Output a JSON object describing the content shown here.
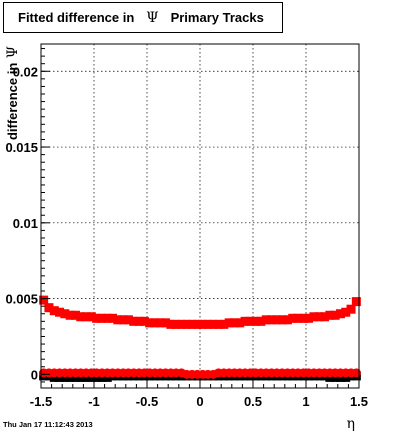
{
  "title": {
    "text": "Fitted difference in",
    "symbol": "Ψ",
    "suffix": "Primary Tracks"
  },
  "footer": "Thu Jan 17 11:12:43 2013",
  "chart_data": {
    "type": "scatter",
    "xlabel": "η",
    "ylabel_text": "difference in",
    "ylabel_symbol": "Ψ",
    "xlim": [
      -1.5,
      1.5
    ],
    "ylim": [
      -0.0009,
      0.0218
    ],
    "xticks": [
      -1.5,
      -1,
      -0.5,
      0,
      0.5,
      1,
      1.5
    ],
    "xtick_labels": [
      "-1.5",
      "-1",
      "-0.5",
      "0",
      "0.5",
      "1",
      "1.5"
    ],
    "yticks": [
      0,
      0.005,
      0.01,
      0.015,
      0.02
    ],
    "ytick_labels": [
      "0",
      "0.005",
      "0.01",
      "0.015",
      "0.02"
    ],
    "grid": true,
    "colors": {
      "red": "#ff0000",
      "black": "#000000"
    },
    "series": [
      {
        "color": "#ff0000",
        "marker": "square",
        "x": [
          -1.475,
          -1.425,
          -1.375,
          -1.325,
          -1.275,
          -1.225,
          -1.175,
          -1.125,
          -1.075,
          -1.025,
          -0.975,
          -0.925,
          -0.875,
          -0.825,
          -0.775,
          -0.725,
          -0.675,
          -0.625,
          -0.575,
          -0.525,
          -0.475,
          -0.425,
          -0.375,
          -0.325,
          -0.275,
          -0.225,
          -0.175,
          -0.125,
          -0.075,
          -0.025,
          0.025,
          0.075,
          0.125,
          0.175,
          0.225,
          0.275,
          0.325,
          0.375,
          0.425,
          0.475,
          0.525,
          0.575,
          0.625,
          0.675,
          0.725,
          0.775,
          0.825,
          0.875,
          0.925,
          0.975,
          1.025,
          1.075,
          1.125,
          1.175,
          1.225,
          1.275,
          1.325,
          1.375,
          1.425,
          1.475
        ],
        "y": [
          0.0049,
          0.0044,
          0.0042,
          0.0041,
          0.004,
          0.0039,
          0.0039,
          0.0038,
          0.0038,
          0.0038,
          0.0037,
          0.0037,
          0.0037,
          0.0037,
          0.0036,
          0.0036,
          0.0036,
          0.0035,
          0.0035,
          0.0035,
          0.0034,
          0.0034,
          0.0034,
          0.0034,
          0.0033,
          0.0033,
          0.0033,
          0.0033,
          0.0033,
          0.0033,
          0.0033,
          0.0033,
          0.0033,
          0.0033,
          0.0033,
          0.0034,
          0.0034,
          0.0034,
          0.0035,
          0.0035,
          0.0035,
          0.0035,
          0.0036,
          0.0036,
          0.0036,
          0.0036,
          0.0036,
          0.0037,
          0.0037,
          0.0037,
          0.0037,
          0.0038,
          0.0038,
          0.0038,
          0.0039,
          0.0039,
          0.004,
          0.0041,
          0.0043,
          0.0048
        ]
      },
      {
        "color": "#ff0000",
        "marker": "circle",
        "x": [
          -1.475,
          -1.425,
          -1.375,
          -1.325,
          -1.275,
          -1.225,
          -1.175,
          -1.125,
          -1.075,
          -1.025,
          -0.975,
          -0.925,
          -0.875,
          -0.825,
          -0.775,
          -0.725,
          -0.675,
          -0.625,
          -0.575,
          -0.525,
          -0.475,
          -0.425,
          -0.375,
          -0.325,
          -0.275,
          -0.225,
          -0.175,
          -0.125,
          -0.075,
          -0.025,
          0.025,
          0.075,
          0.125,
          0.175,
          0.225,
          0.275,
          0.325,
          0.375,
          0.425,
          0.475,
          0.525,
          0.575,
          0.625,
          0.675,
          0.725,
          0.775,
          0.825,
          0.875,
          0.925,
          0.975,
          1.025,
          1.075,
          1.125,
          1.175,
          1.225,
          1.275,
          1.325,
          1.375,
          1.425,
          1.475
        ],
        "y": [
          0.0001,
          0.0001,
          0.0001,
          0.0001,
          0.0001,
          0.0001,
          0.0001,
          0.0001,
          0.0001,
          0.0001,
          0.0001,
          0.0001,
          0.0001,
          0.0001,
          0.0001,
          0.0001,
          0.0001,
          0.0001,
          0.0001,
          0.0001,
          0.0001,
          0.0001,
          0.0001,
          0.0001,
          0.0001,
          0.0001,
          0.0001,
          0.0,
          0.0,
          0.0,
          0.0,
          0.0,
          0.0,
          0.0001,
          0.0001,
          0.0001,
          0.0001,
          0.0001,
          0.0001,
          0.0001,
          0.0001,
          0.0001,
          0.0001,
          0.0001,
          0.0001,
          0.0001,
          0.0001,
          0.0001,
          0.0001,
          0.0001,
          0.0001,
          0.0001,
          0.0001,
          0.0001,
          0.0001,
          0.0001,
          0.0001,
          0.0001,
          0.0001,
          0.0001
        ]
      },
      {
        "color": "#000000",
        "marker": "square",
        "x": [
          -1.475,
          -1.425,
          -1.375,
          -1.325,
          -1.275,
          -1.225,
          -1.175,
          -1.125,
          -1.075,
          -1.025,
          -0.975,
          -0.925,
          -0.875,
          -0.825,
          -0.775,
          -0.725,
          -0.675,
          -0.625,
          -0.575,
          -0.525,
          -0.475,
          -0.425,
          -0.375,
          -0.325,
          -0.275,
          -0.225,
          -0.175,
          -0.125,
          -0.075,
          -0.025,
          0.025,
          0.075,
          0.125,
          0.175,
          0.225,
          0.275,
          0.325,
          0.375,
          0.425,
          0.475,
          0.525,
          0.575,
          0.625,
          0.675,
          0.725,
          0.775,
          0.825,
          0.875,
          0.925,
          0.975,
          1.025,
          1.075,
          1.125,
          1.175,
          1.225,
          1.275,
          1.325,
          1.375,
          1.425,
          1.475
        ],
        "y": [
          -0.0001,
          -0.0001,
          -0.0002,
          -0.0002,
          -0.0002,
          -0.0002,
          -0.0002,
          -0.0002,
          -0.0002,
          -0.0002,
          -0.0002,
          -0.0002,
          -0.0002,
          -0.0001,
          -0.0001,
          -0.0001,
          -0.0001,
          -0.0001,
          -0.0001,
          -0.0001,
          -0.0001,
          -0.0001,
          -0.0001,
          -0.0001,
          -0.0001,
          -0.0001,
          -0.0001,
          -0.0001,
          -0.0001,
          -0.0001,
          -0.0001,
          -0.0001,
          -0.0001,
          -0.0001,
          -0.0001,
          -0.0001,
          -0.0001,
          -0.0001,
          -0.0001,
          -0.0001,
          -0.0001,
          -0.0001,
          -0.0001,
          -0.0001,
          -0.0001,
          -0.0001,
          -0.0001,
          -0.0001,
          -0.0001,
          -0.0001,
          -0.0001,
          -0.0001,
          -0.0001,
          -0.0001,
          -0.0002,
          -0.0002,
          -0.0002,
          -0.0002,
          -0.0001,
          -0.0001
        ]
      }
    ]
  }
}
